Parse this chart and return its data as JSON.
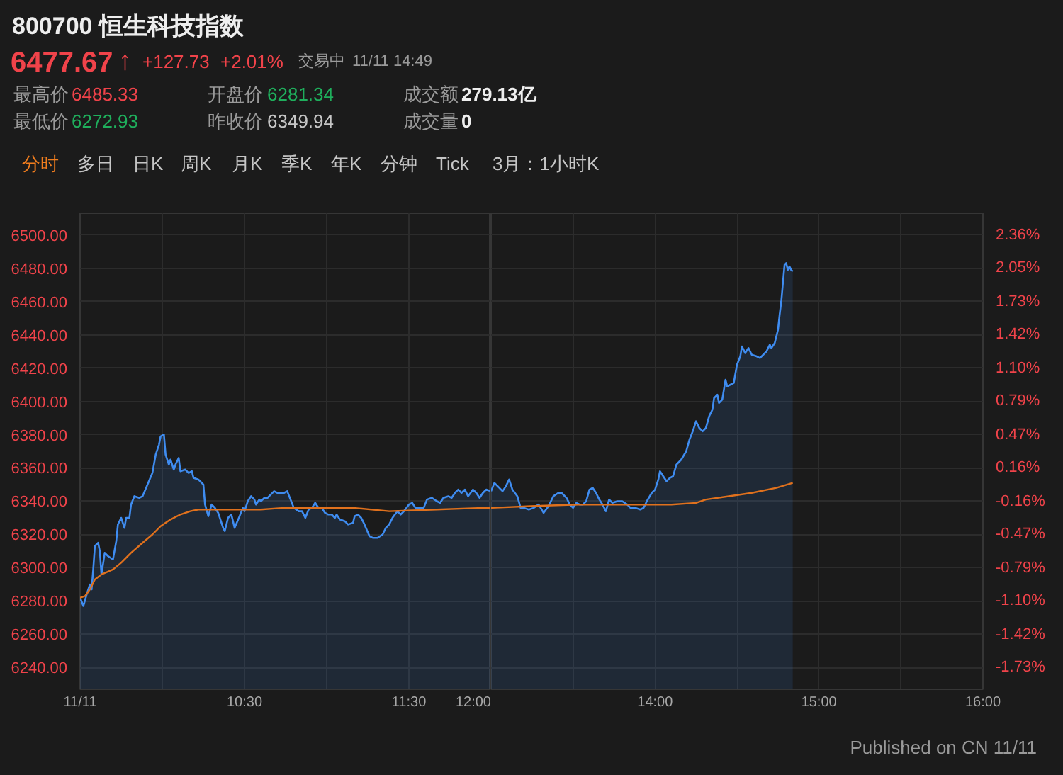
{
  "chart_data": [
    {
      "type": "area",
      "title": "800700 恒生科技指数",
      "annotations": [
        "6477.67",
        "↑",
        "+127.73",
        "+2.01%",
        "交易中",
        "11/11 14:49",
        "最高价",
        "6485.33",
        "开盘价",
        "6281.34",
        "成交额",
        "279.13亿",
        "最低价",
        "6272.93",
        "昨收价",
        "6349.94",
        "成交量",
        "0",
        "分时",
        "多日",
        "日K",
        "周K",
        "月K",
        "季K",
        "年K",
        "分钟",
        "Tick",
        "3月：1小时K"
      ],
      "xlim": [
        9.5,
        12
      ],
      "xticks": [
        {
          "value": 9.5,
          "label": "11/11"
        },
        {
          "value": 10,
          "label": null
        },
        {
          "value": 10.5,
          "label": "10:30"
        },
        {
          "value": 11,
          "label": null
        },
        {
          "value": 11.5,
          "label": "11:30"
        },
        {
          "value": 12,
          "label": "12:00"
        }
      ],
      "ylim": [
        6227,
        6513
      ],
      "yticks": [
        {
          "value": 6240,
          "label": "6240.00"
        },
        {
          "value": 6260,
          "label": "6260.00"
        },
        {
          "value": 6280,
          "label": "6280.00"
        },
        {
          "value": 6300,
          "label": "6300.00"
        },
        {
          "value": 6320,
          "label": "6320.00"
        },
        {
          "value": 6340,
          "label": "6340.00"
        },
        {
          "value": 6360,
          "label": "6360.00"
        },
        {
          "value": 6380,
          "label": "6380.00"
        },
        {
          "value": 6400,
          "label": "6400.00"
        },
        {
          "value": 6420,
          "label": "6420.00"
        },
        {
          "value": 6440,
          "label": "6440.00"
        },
        {
          "value": 6460,
          "label": "6460.00"
        },
        {
          "value": 6480,
          "label": "6480.00"
        },
        {
          "value": 6500,
          "label": "6500.00"
        }
      ],
      "grid": true,
      "series": [
        {
          "color": "#3f8cf0",
          "x": [
            9.5,
            9.52,
            9.54,
            9.56,
            9.57,
            9.58,
            9.59,
            9.61,
            9.62,
            9.63,
            9.65,
            9.67,
            9.7,
            9.72,
            9.73,
            9.75,
            9.77,
            9.78,
            9.8,
            9.81,
            9.83,
            9.86,
            9.88,
            9.91,
            9.94,
            9.96,
            9.98,
            9.99,
            10.01,
            10.02,
            10.04,
            10.05,
            10.07,
            10.08,
            10.1,
            10.11,
            10.14,
            10.16,
            10.18,
            10.19,
            10.22,
            10.25,
            10.26,
            10.28,
            10.3,
            10.32,
            10.34,
            10.37,
            10.38,
            10.4,
            10.42,
            10.44,
            10.47,
            10.49,
            10.5,
            10.52,
            10.54,
            10.56,
            10.57,
            10.59,
            10.6,
            10.62,
            10.64,
            10.65,
            10.68,
            10.7,
            10.72,
            10.74,
            10.76,
            10.78,
            10.8,
            10.83,
            10.85,
            10.87,
            10.89,
            10.91,
            10.93,
            10.95,
            10.97,
            10.99,
            11.01,
            11.03,
            11.05,
            11.06,
            11.08,
            11.11,
            11.13,
            11.16,
            11.17,
            11.19,
            11.21,
            11.23,
            11.26,
            11.28,
            11.31,
            11.34,
            11.36,
            11.38,
            11.4,
            11.43,
            11.45,
            11.47,
            11.5,
            11.52,
            11.54,
            11.57,
            11.59,
            11.61,
            11.64,
            11.67,
            11.69,
            11.71,
            11.74,
            11.76,
            11.78,
            11.8,
            11.82,
            11.84,
            11.86,
            11.89,
            11.91,
            11.93,
            11.95,
            11.97,
            12.0
          ],
          "values": [
            6282,
            6277,
            6284,
            6290,
            6287,
            6299,
            6313,
            6315,
            6310,
            6296,
            6309,
            6307,
            6305,
            6316,
            6326,
            6330,
            6324,
            6330,
            6330,
            6338,
            6343,
            6342,
            6343,
            6350,
            6357,
            6368,
            6374,
            6379,
            6380,
            6368,
            6362,
            6365,
            6359,
            6362,
            6366,
            6358,
            6359,
            6357,
            6358,
            6354,
            6353,
            6350,
            6338,
            6331,
            6338,
            6336,
            6333,
            6324,
            6322,
            6330,
            6332,
            6324,
            6331,
            6336,
            6334,
            6340,
            6343,
            6341,
            6338,
            6341,
            6340,
            6342,
            6342,
            6343,
            6346,
            6345,
            6345,
            6345,
            6346,
            6341,
            6336,
            6334,
            6334,
            6330,
            6335,
            6336,
            6339,
            6336,
            6336,
            6333,
            6332,
            6332,
            6330,
            6332,
            6329,
            6328,
            6326,
            6327,
            6331,
            6332,
            6330,
            6326,
            6319,
            6318,
            6318,
            6320,
            6324,
            6326,
            6330,
            6334,
            6332,
            6334,
            6338,
            6339,
            6336,
            6336,
            6336,
            6341,
            6342,
            6340,
            6339,
            6342,
            6343,
            6342,
            6345,
            6347,
            6345,
            6347,
            6343,
            6347,
            6345,
            6342,
            6345,
            6347,
            6346
          ]
        },
        {
          "type": "line",
          "color": "#e0711d",
          "x": [
            9.5,
            9.53,
            9.56,
            9.59,
            9.63,
            9.7,
            9.75,
            9.81,
            9.88,
            9.94,
            9.99,
            10.05,
            10.11,
            10.17,
            10.22,
            10.31,
            10.45,
            10.6,
            10.74,
            10.88,
            11.03,
            11.16,
            11.38,
            11.67,
            11.95,
            12.0
          ],
          "values": [
            6282,
            6283,
            6287,
            6293,
            6296,
            6299,
            6303,
            6309,
            6315,
            6320,
            6325,
            6329,
            6332,
            6334,
            6335,
            6335,
            6335,
            6335,
            6336,
            6336,
            6336,
            6336,
            6334,
            6335,
            6336,
            6336
          ]
        }
      ]
    },
    {
      "type": "area",
      "annotations": [
        "Published on CN 11/11"
      ],
      "xlim": [
        13,
        16
      ],
      "xticks": [
        {
          "value": 13,
          "label": null
        },
        {
          "value": 13.5,
          "label": null
        },
        {
          "value": 14,
          "label": "14:00"
        },
        {
          "value": 14.5,
          "label": null
        },
        {
          "value": 15,
          "label": "15:00"
        },
        {
          "value": 15.5,
          "label": null
        },
        {
          "value": 16,
          "label": "16:00"
        }
      ],
      "ylim": [
        6227,
        6513
      ],
      "yticks": [
        6240,
        6260,
        6280,
        6300,
        6320,
        6340,
        6360,
        6380,
        6400,
        6420,
        6440,
        6460,
        6480,
        6500
      ],
      "tick_labels": "x",
      "y2lim": [
        -1.936,
        2.568
      ],
      "y2ticks": [
        {
          "value": -1.73,
          "label": "-1.73%"
        },
        {
          "value": -1.42,
          "label": "-1.42%"
        },
        {
          "value": -1.1,
          "label": "-1.10%"
        },
        {
          "value": -0.79,
          "label": "-0.79%"
        },
        {
          "value": -0.47,
          "label": "-0.47%"
        },
        {
          "value": -0.16,
          "label": "-0.16%"
        },
        {
          "value": 0.16,
          "label": "0.16%"
        },
        {
          "value": 0.47,
          "label": "0.47%"
        },
        {
          "value": 0.79,
          "label": "0.79%"
        },
        {
          "value": 1.1,
          "label": "1.10%"
        },
        {
          "value": 1.42,
          "label": "1.42%"
        },
        {
          "value": 1.73,
          "label": "1.73%"
        },
        {
          "value": 2.05,
          "label": "2.05%"
        },
        {
          "value": 2.36,
          "label": "2.36%"
        }
      ],
      "grid": true,
      "series": [
        {
          "color": "#3f8cf0",
          "x": [
            13.0,
            13.02,
            13.05,
            13.07,
            13.09,
            13.11,
            13.13,
            13.16,
            13.18,
            13.2,
            13.23,
            13.26,
            13.29,
            13.32,
            13.35,
            13.38,
            13.41,
            13.43,
            13.46,
            13.48,
            13.5,
            13.52,
            13.54,
            13.56,
            13.58,
            13.6,
            13.62,
            13.64,
            13.66,
            13.68,
            13.7,
            13.72,
            13.74,
            13.77,
            13.8,
            13.83,
            13.85,
            13.88,
            13.91,
            13.93,
            13.95,
            13.98,
            14.0,
            14.02,
            14.03,
            14.05,
            14.07,
            14.09,
            14.11,
            14.13,
            14.16,
            14.19,
            14.21,
            14.23,
            14.25,
            14.27,
            14.29,
            14.31,
            14.33,
            14.35,
            14.36,
            14.38,
            14.39,
            14.41,
            14.43,
            14.44,
            14.46,
            14.48,
            14.5,
            14.52,
            14.53,
            14.55,
            14.57,
            14.59,
            14.62,
            14.64,
            14.66,
            14.68,
            14.7,
            14.71,
            14.73,
            14.75,
            14.76,
            14.77,
            14.78,
            14.79,
            14.8,
            14.81,
            14.82,
            14.83,
            14.84
          ],
          "values": [
            6346,
            6351,
            6348,
            6346,
            6349,
            6353,
            6347,
            6343,
            6336,
            6336,
            6335,
            6336,
            6338,
            6333,
            6337,
            6343,
            6345,
            6345,
            6342,
            6338,
            6336,
            6339,
            6338,
            6338,
            6340,
            6347,
            6348,
            6345,
            6341,
            6338,
            6334,
            6341,
            6339,
            6340,
            6340,
            6338,
            6336,
            6336,
            6335,
            6336,
            6340,
            6345,
            6347,
            6353,
            6358,
            6355,
            6352,
            6354,
            6355,
            6362,
            6365,
            6370,
            6377,
            6382,
            6388,
            6384,
            6382,
            6384,
            6391,
            6395,
            6402,
            6404,
            6399,
            6401,
            6413,
            6409,
            6410,
            6411,
            6422,
            6427,
            6433,
            6429,
            6432,
            6428,
            6427,
            6426,
            6428,
            6430,
            6434,
            6432,
            6435,
            6443,
            6452,
            6460,
            6471,
            6482,
            6483,
            6479,
            6481,
            6479,
            6478
          ]
        },
        {
          "type": "line",
          "color": "#e0711d",
          "x": [
            13.0,
            13.24,
            13.53,
            13.82,
            14.1,
            14.25,
            14.31,
            14.45,
            14.59,
            14.74,
            14.84
          ],
          "values": [
            6336,
            6337,
            6338,
            6338,
            6338,
            6339,
            6341,
            6343,
            6345,
            6348,
            6351
          ]
        }
      ]
    }
  ]
}
